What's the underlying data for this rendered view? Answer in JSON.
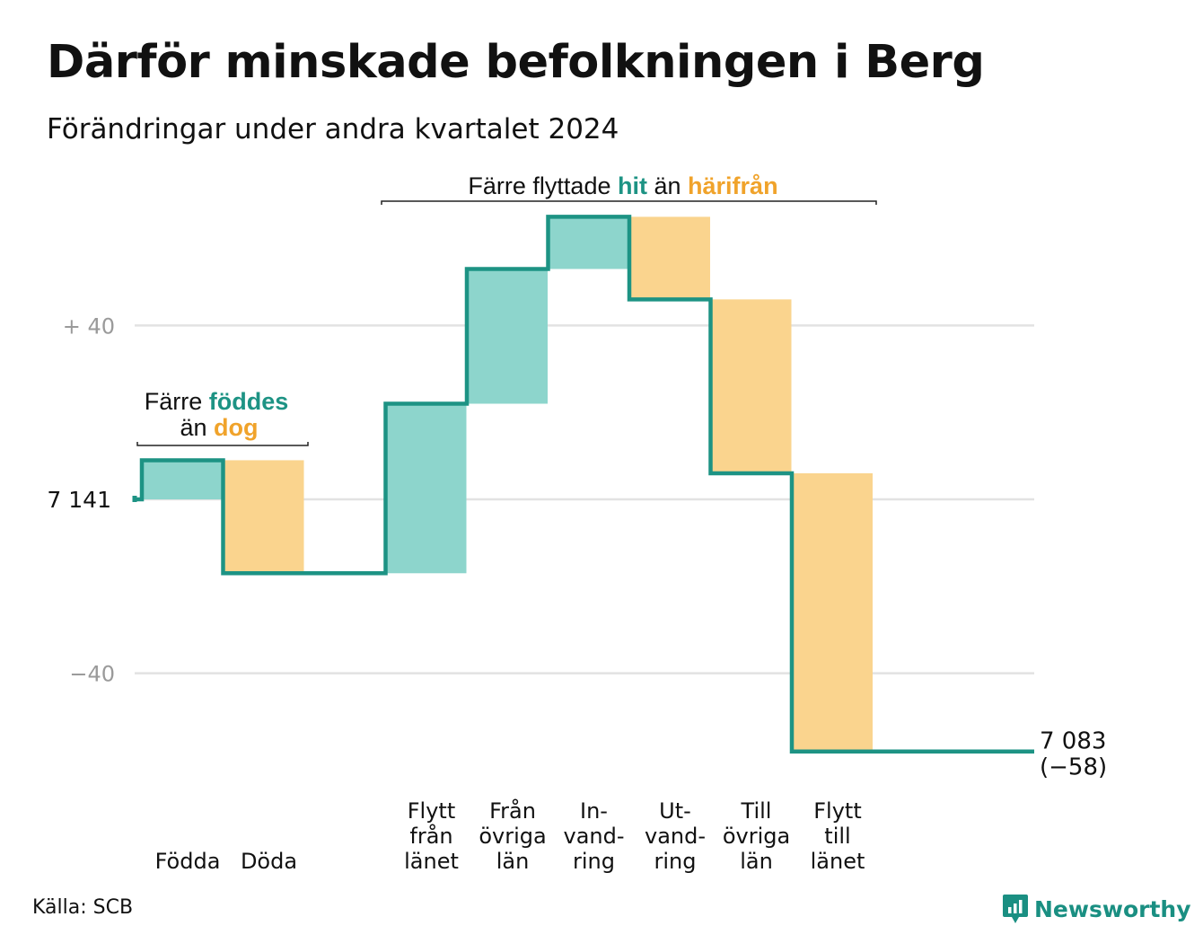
{
  "title": "Därför minskade befolkningen i Berg",
  "subtitle": "Förändringar under andra kvartalet 2024",
  "source": "Källa: SCB",
  "brand": "Newsworthy",
  "colors": {
    "increase": "#8dd5cc",
    "decrease": "#fad48e",
    "line": "#1d9384",
    "grid": "#e2e2e2",
    "tick": "#9a9a9a",
    "accent_teal": "#1d9384",
    "accent_orange": "#f0a32b"
  },
  "annotations": {
    "births": {
      "prefix": "Färre ",
      "hi1": "föddes",
      "mid": "än ",
      "hi2": "dog"
    },
    "migration": {
      "prefix": "Färre flyttade ",
      "hi1": "hit",
      "mid": " än ",
      "hi2": "härifrån"
    }
  },
  "chart_data": {
    "type": "waterfall",
    "start_label": "7 141",
    "start_value": 7141,
    "end_label": "7 083",
    "end_change_label": "(−58)",
    "end_value": 7083,
    "categories": [
      {
        "lines": [
          "Födda"
        ],
        "value": 9
      },
      {
        "lines": [
          "Döda"
        ],
        "value": -26
      },
      {
        "lines": [],
        "value": 0
      },
      {
        "lines": [
          "Flytt",
          "från",
          "länet"
        ],
        "value": 39
      },
      {
        "lines": [
          "Från",
          "övriga",
          "län"
        ],
        "value": 31
      },
      {
        "lines": [
          "In-",
          "vand-",
          "ring"
        ],
        "value": 12
      },
      {
        "lines": [
          "Ut-",
          "vand-",
          "ring"
        ],
        "value": -19
      },
      {
        "lines": [
          "Till",
          "övriga",
          "län"
        ],
        "value": -40
      },
      {
        "lines": [
          "Flytt",
          "till",
          "länet"
        ],
        "value": -64
      }
    ],
    "y_ticks": [
      {
        "value": 40,
        "label": "+  40"
      },
      {
        "value": 0,
        "label": "7  141"
      },
      {
        "value": -40,
        "label": "−40"
      }
    ],
    "ylim": [
      -62,
      67
    ],
    "grid": true
  }
}
